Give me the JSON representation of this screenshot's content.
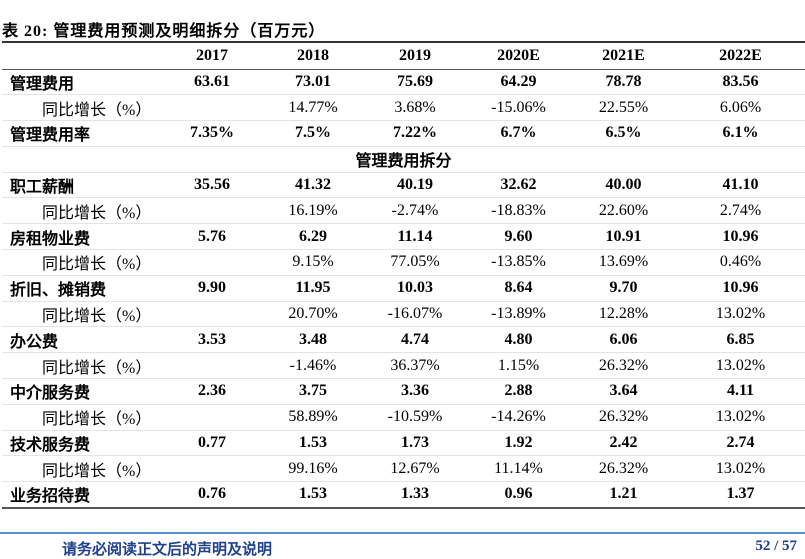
{
  "title": "表 20: 管理费用预测及明细拆分（百万元）",
  "columns": [
    "",
    "2017",
    "2018",
    "2019",
    "2020E",
    "2021E",
    "2022E"
  ],
  "rows": [
    {
      "type": "main",
      "label": "管理费用",
      "values": [
        "63.61",
        "73.01",
        "75.69",
        "64.29",
        "78.78",
        "83.56"
      ]
    },
    {
      "type": "sub",
      "label": "同比增长（%）",
      "values": [
        "",
        "14.77%",
        "3.68%",
        "-15.06%",
        "22.55%",
        "6.06%"
      ]
    },
    {
      "type": "main",
      "label": "管理费用率",
      "values": [
        "7.35%",
        "7.5%",
        "7.22%",
        "6.7%",
        "6.5%",
        "6.1%"
      ]
    },
    {
      "type": "sec",
      "label": "管理费用拆分",
      "values": []
    },
    {
      "type": "main",
      "label": "职工薪酬",
      "values": [
        "35.56",
        "41.32",
        "40.19",
        "32.62",
        "40.00",
        "41.10"
      ]
    },
    {
      "type": "sub",
      "label": "同比增长（%）",
      "values": [
        "",
        "16.19%",
        "-2.74%",
        "-18.83%",
        "22.60%",
        "2.74%"
      ]
    },
    {
      "type": "main",
      "label": "房租物业费",
      "values": [
        "5.76",
        "6.29",
        "11.14",
        "9.60",
        "10.91",
        "10.96"
      ]
    },
    {
      "type": "sub",
      "label": "同比增长（%）",
      "values": [
        "",
        "9.15%",
        "77.05%",
        "-13.85%",
        "13.69%",
        "0.46%"
      ]
    },
    {
      "type": "main",
      "label": "折旧、摊销费",
      "values": [
        "9.90",
        "11.95",
        "10.03",
        "8.64",
        "9.70",
        "10.96"
      ]
    },
    {
      "type": "sub",
      "label": "同比增长（%）",
      "values": [
        "",
        "20.70%",
        "-16.07%",
        "-13.89%",
        "12.28%",
        "13.02%"
      ]
    },
    {
      "type": "main",
      "label": "办公费",
      "values": [
        "3.53",
        "3.48",
        "4.74",
        "4.80",
        "6.06",
        "6.85"
      ]
    },
    {
      "type": "sub",
      "label": "同比增长（%）",
      "values": [
        "",
        "-1.46%",
        "36.37%",
        "1.15%",
        "26.32%",
        "13.02%"
      ]
    },
    {
      "type": "main",
      "label": "中介服务费",
      "values": [
        "2.36",
        "3.75",
        "3.36",
        "2.88",
        "3.64",
        "4.11"
      ]
    },
    {
      "type": "sub",
      "label": "同比增长（%）",
      "values": [
        "",
        "58.89%",
        "-10.59%",
        "-14.26%",
        "26.32%",
        "13.02%"
      ]
    },
    {
      "type": "main",
      "label": "技术服务费",
      "values": [
        "0.77",
        "1.53",
        "1.73",
        "1.92",
        "2.42",
        "2.74"
      ]
    },
    {
      "type": "sub",
      "label": "同比增长（%）",
      "values": [
        "",
        "99.16%",
        "12.67%",
        "11.14%",
        "26.32%",
        "13.02%"
      ]
    },
    {
      "type": "main",
      "label": "业务招待费",
      "values": [
        "0.76",
        "1.53",
        "1.33",
        "0.96",
        "1.21",
        "1.37"
      ]
    }
  ],
  "footer": {
    "disclaimer": "请务必阅读正文后的声明及说明",
    "page": "52 / 57"
  }
}
